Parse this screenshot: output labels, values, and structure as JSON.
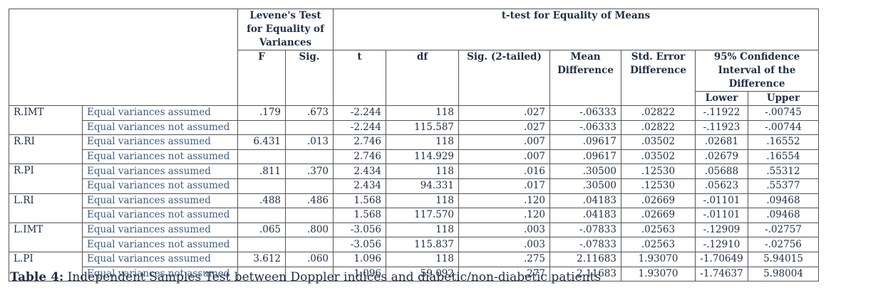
{
  "headers": {
    "levene": "Levene's Test for Equality of Variances",
    "ttest": "t-test for Equality of Means",
    "f": "F",
    "sig": "Sig.",
    "t": "t",
    "df": "df",
    "sig2": "Sig. (2-tailed)",
    "mean_diff": "Mean Difference",
    "std_err": "Std. Error Difference",
    "ci": "95% Confidence Interval of the Difference",
    "lower": "Lower",
    "upper": "Upper"
  },
  "groups": [
    {
      "var": "R.IMT",
      "rows": [
        {
          "label": "Equal variances assumed",
          "f": ".179",
          "sig": ".673",
          "t": "-2.244",
          "df": "118",
          "sig2": ".027",
          "md": "-.06333",
          "se": ".02822",
          "lower": "-.11922",
          "upper": "-.00745"
        },
        {
          "label": "Equal variances not assumed",
          "f": "",
          "sig": "",
          "t": "-2.244",
          "df": "115.587",
          "sig2": ".027",
          "md": "-.06333",
          "se": ".02822",
          "lower": "-.11923",
          "upper": "-.00744"
        }
      ]
    },
    {
      "var": "R.RI",
      "rows": [
        {
          "label": "Equal variances assumed",
          "f": "6.431",
          "sig": ".013",
          "t": "2.746",
          "df": "118",
          "sig2": ".007",
          "md": ".09617",
          "se": ".03502",
          "lower": ".02681",
          "upper": ".16552"
        },
        {
          "label": "Equal variances not assumed",
          "f": "",
          "sig": "",
          "t": "2.746",
          "df": "114.929",
          "sig2": ".007",
          "md": ".09617",
          "se": ".03502",
          "lower": ".02679",
          "upper": ".16554"
        }
      ]
    },
    {
      "var": "R.PI",
      "rows": [
        {
          "label": "Equal variances assumed",
          "f": ".811",
          "sig": ".370",
          "t": "2.434",
          "df": "118",
          "sig2": ".016",
          "md": ".30500",
          "se": ".12530",
          "lower": ".05688",
          "upper": ".55312"
        },
        {
          "label": "Equal variances not assumed",
          "f": "",
          "sig": "",
          "t": "2.434",
          "df": "94.331",
          "sig2": ".017",
          "md": ".30500",
          "se": ".12530",
          "lower": ".05623",
          "upper": ".55377"
        }
      ]
    },
    {
      "var": "L.RI",
      "rows": [
        {
          "label": "Equal variances assumed",
          "f": ".488",
          "sig": ".486",
          "t": "1.568",
          "df": "118",
          "sig2": ".120",
          "md": ".04183",
          "se": ".02669",
          "lower": "-.01101",
          "upper": ".09468"
        },
        {
          "label": "Equal variances not assumed",
          "f": "",
          "sig": "",
          "t": "1.568",
          "df": "117.570",
          "sig2": ".120",
          "md": ".04183",
          "se": ".02669",
          "lower": "-.01101",
          "upper": ".09468"
        }
      ]
    },
    {
      "var": "L.IMT",
      "rows": [
        {
          "label": "Equal variances assumed",
          "f": ".065",
          "sig": ".800",
          "t": "-3.056",
          "df": "118",
          "sig2": ".003",
          "md": "-.07833",
          "se": ".02563",
          "lower": "-.12909",
          "upper": "-.02757"
        },
        {
          "label": "Equal variances not assumed",
          "f": "",
          "sig": "",
          "t": "-3.056",
          "df": "115.837",
          "sig2": ".003",
          "md": "-.07833",
          "se": ".02563",
          "lower": "-.12910",
          "upper": "-.02756"
        }
      ]
    },
    {
      "var": "L.PI",
      "rows": [
        {
          "label": "Equal variances assumed",
          "f": "3.612",
          "sig": ".060",
          "t": "1.096",
          "df": "118",
          "sig2": ".275",
          "md": "2.11683",
          "se": "1.93070",
          "lower": "-1.70649",
          "upper": "5.94015"
        },
        {
          "label": "Equal variances not assumed",
          "f": "",
          "sig": "",
          "t": "1.096",
          "df": "59.092",
          "sig2": ".277",
          "md": "2.11683",
          "se": "1.93070",
          "lower": "-1.74637",
          "upper": "5.98004"
        }
      ]
    }
  ],
  "caption": {
    "label": "Table 4:",
    "text": " Independent Samples Test between Doppler indices and diabetic/non-diabetic patients"
  }
}
